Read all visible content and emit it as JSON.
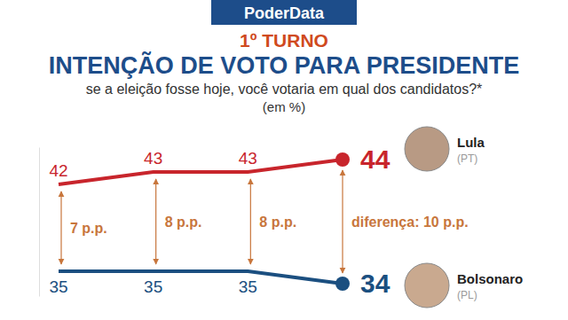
{
  "chart_data": {
    "type": "line",
    "source": "PoderData",
    "round": "1º TURNO",
    "title": "INTENÇÃO DE VOTO PARA PRESIDENTE",
    "subtitle": "se a eleição fosse hoje, você votaria em qual dos candidatos?*",
    "ylabel": "(em %)",
    "categories": [
      null,
      null,
      null,
      null
    ],
    "series": [
      {
        "name": "Lula",
        "party": "(PT)",
        "color": "#c8252c",
        "values": [
          42,
          43,
          43,
          44
        ]
      },
      {
        "name": "Bolsonaro",
        "party": "(PL)",
        "color": "#1b4f80",
        "values": [
          35,
          35,
          35,
          34
        ]
      }
    ],
    "annotations": [
      "7 p.p.",
      "8 p.p.",
      "8 p.p.",
      "diferença: 10 p.p."
    ],
    "ylim": [
      33,
      45
    ],
    "yticks": [],
    "tick_labels": false,
    "grid": false,
    "data_labels": true
  }
}
